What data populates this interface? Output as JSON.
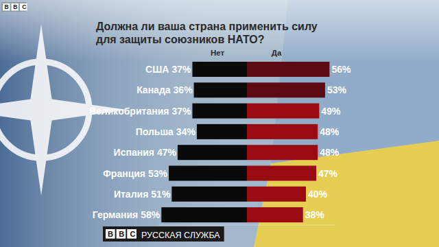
{
  "chart_data": {
    "type": "bar",
    "orientation": "horizontal",
    "title": "Должна ли ваша страна применить силу для защиты союзников НАТО?",
    "categories": [
      "США",
      "Канада",
      "Великобритания",
      "Польша",
      "Испания",
      "Франция",
      "Италия",
      "Германия"
    ],
    "series": [
      {
        "name": "Нет",
        "color": "#0a0a0a",
        "values": [
          37,
          36,
          37,
          34,
          47,
          53,
          51,
          58
        ],
        "value_labels": [
          "37%",
          "36%",
          "37%",
          "34%",
          "47%",
          "53%",
          "51%",
          "58%"
        ]
      },
      {
        "name": "Да",
        "colors": [
          "#5c0b12",
          "#5c0b12",
          "#980b10",
          "#980b10",
          "#980b10",
          "#980b10",
          "#980b10",
          "#980b10"
        ],
        "values": [
          56,
          53,
          49,
          48,
          48,
          47,
          40,
          38
        ],
        "value_labels": [
          "56%",
          "53%",
          "49%",
          "48%",
          "48%",
          "47%",
          "40%",
          "38%"
        ]
      }
    ],
    "xlim": [
      0,
      60
    ],
    "data_labels": true,
    "tick_labels": false,
    "grid": false,
    "branding": {
      "top": "BBC",
      "footer": [
        "BBC",
        "РУССКАЯ СЛУЖБА"
      ]
    }
  }
}
